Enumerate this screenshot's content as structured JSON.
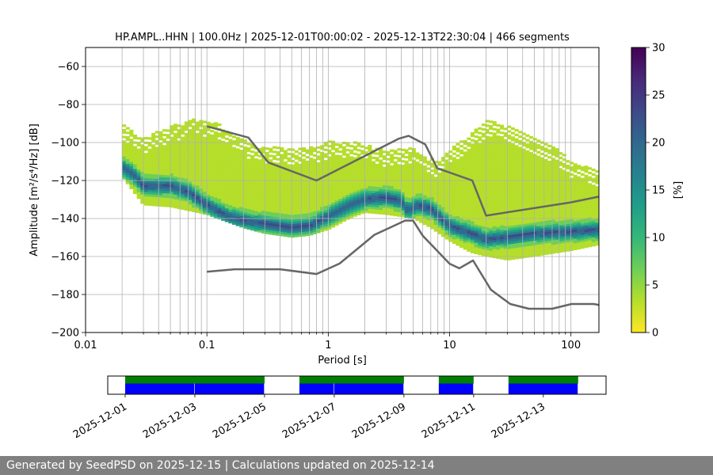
{
  "footer": {
    "text": "Generated by SeedPSD on 2025-12-15 | Calculations updated on 2025-12-14"
  },
  "chart_data": {
    "type": "heatmap",
    "title": "HP.AMPL..HHN | 100.0Hz | 2025-12-01T00:00:02 - 2025-12-13T22:30:04 | 466 segments",
    "xlabel": "Period [s]",
    "ylabel": "Amplitude [m²/s⁴/Hz] [dB]",
    "xscale": "log",
    "xlim": [
      0.01,
      170
    ],
    "ylim": [
      -200,
      -50
    ],
    "xticks": [
      {
        "value": 0.01,
        "label": "0.01"
      },
      {
        "value": 0.1,
        "label": "0.1"
      },
      {
        "value": 1,
        "label": "1"
      },
      {
        "value": 10,
        "label": "10"
      },
      {
        "value": 100,
        "label": "100"
      }
    ],
    "yticks": [
      {
        "value": -60,
        "label": "−60"
      },
      {
        "value": -80,
        "label": "−80"
      },
      {
        "value": -100,
        "label": "−100"
      },
      {
        "value": -120,
        "label": "−120"
      },
      {
        "value": -140,
        "label": "−140"
      },
      {
        "value": -160,
        "label": "−160"
      },
      {
        "value": -180,
        "label": "−180"
      },
      {
        "value": -200,
        "label": "−200"
      }
    ],
    "grid": true,
    "density": {
      "period_range": [
        0.02,
        170
      ],
      "mode_curve": [
        [
          0.02,
          -113
        ],
        [
          0.025,
          -117
        ],
        [
          0.03,
          -123
        ],
        [
          0.04,
          -123
        ],
        [
          0.05,
          -123
        ],
        [
          0.07,
          -126
        ],
        [
          0.1,
          -133
        ],
        [
          0.15,
          -139
        ],
        [
          0.2,
          -141
        ],
        [
          0.3,
          -143
        ],
        [
          0.5,
          -145
        ],
        [
          0.7,
          -144
        ],
        [
          1,
          -139
        ],
        [
          1.5,
          -133
        ],
        [
          2,
          -130
        ],
        [
          3,
          -129
        ],
        [
          4,
          -131
        ],
        [
          4.5,
          -136
        ],
        [
          5.5,
          -133
        ],
        [
          7,
          -135
        ],
        [
          10,
          -144
        ],
        [
          15,
          -148
        ],
        [
          20,
          -151
        ],
        [
          30,
          -150
        ],
        [
          50,
          -148
        ],
        [
          100,
          -147
        ],
        [
          170,
          -146
        ]
      ],
      "upper_curve": [
        [
          0.02,
          -90
        ],
        [
          0.03,
          -98
        ],
        [
          0.05,
          -92
        ],
        [
          0.08,
          -88
        ],
        [
          0.12,
          -90
        ],
        [
          0.2,
          -99
        ],
        [
          0.3,
          -103
        ],
        [
          0.5,
          -103
        ],
        [
          0.8,
          -103
        ],
        [
          1,
          -100
        ],
        [
          1.5,
          -100
        ],
        [
          2,
          -101
        ],
        [
          3,
          -105
        ],
        [
          5,
          -103
        ],
        [
          6,
          -108
        ],
        [
          8,
          -110
        ],
        [
          10,
          -104
        ],
        [
          15,
          -96
        ],
        [
          20,
          -89
        ],
        [
          25,
          -90
        ],
        [
          40,
          -95
        ],
        [
          70,
          -102
        ],
        [
          100,
          -110
        ],
        [
          170,
          -116
        ]
      ],
      "lower_curve": [
        [
          0.02,
          -118
        ],
        [
          0.03,
          -133
        ],
        [
          0.05,
          -134
        ],
        [
          0.1,
          -138
        ],
        [
          0.2,
          -145
        ],
        [
          0.3,
          -148
        ],
        [
          0.5,
          -150
        ],
        [
          0.7,
          -149
        ],
        [
          1,
          -146
        ],
        [
          1.5,
          -140
        ],
        [
          2,
          -137
        ],
        [
          3,
          -138
        ],
        [
          5,
          -140
        ],
        [
          7,
          -145
        ],
        [
          10,
          -152
        ],
        [
          15,
          -158
        ],
        [
          20,
          -160
        ],
        [
          30,
          -162
        ],
        [
          50,
          -160
        ],
        [
          100,
          -157
        ],
        [
          170,
          -154
        ]
      ]
    },
    "noise_models": [
      {
        "name": "high-noise-model",
        "points": [
          [
            0.1,
            -91.5
          ],
          [
            0.22,
            -97.4
          ],
          [
            0.32,
            -110.5
          ],
          [
            0.8,
            -120
          ],
          [
            3.8,
            -98
          ],
          [
            4.6,
            -96.5
          ],
          [
            6.3,
            -101
          ],
          [
            7.9,
            -113.5
          ],
          [
            15.4,
            -120
          ],
          [
            20,
            -138.5
          ],
          [
            100,
            -131.5
          ],
          [
            170,
            -128.5
          ]
        ]
      },
      {
        "name": "low-noise-model",
        "points": [
          [
            0.1,
            -168
          ],
          [
            0.17,
            -166.7
          ],
          [
            0.4,
            -166.7
          ],
          [
            0.8,
            -169.2
          ],
          [
            1.24,
            -163.7
          ],
          [
            2.4,
            -148.6
          ],
          [
            4.3,
            -141.1
          ],
          [
            5,
            -141.1
          ],
          [
            6,
            -149
          ],
          [
            10,
            -163.8
          ],
          [
            12,
            -166.2
          ],
          [
            15.6,
            -162.1
          ],
          [
            21.9,
            -177.5
          ],
          [
            31.6,
            -185
          ],
          [
            45,
            -187.5
          ],
          [
            70,
            -187.5
          ],
          [
            101,
            -185
          ],
          [
            154,
            -185
          ],
          [
            170,
            -185.5
          ]
        ]
      }
    ],
    "colorbar": {
      "label": "[%]",
      "range": [
        0,
        30
      ],
      "ticks": [
        {
          "value": 0,
          "label": "0"
        },
        {
          "value": 5,
          "label": "5"
        },
        {
          "value": 10,
          "label": "10"
        },
        {
          "value": 15,
          "label": "15"
        },
        {
          "value": 20,
          "label": "20"
        },
        {
          "value": 25,
          "label": "25"
        },
        {
          "value": 30,
          "label": "30"
        }
      ],
      "colors": [
        "#fde725",
        "#b5de2b",
        "#6ece58",
        "#35b779",
        "#1f9e89",
        "#26828e",
        "#31688e",
        "#3e4989",
        "#482878",
        "#440154"
      ]
    },
    "timeline": {
      "xlim": [
        "2025-12-01",
        "2025-12-14.3"
      ],
      "ticks": [
        "2025-12-01",
        "2025-12-03",
        "2025-12-05",
        "2025-12-07",
        "2025-12-09",
        "2025-12-11",
        "2025-12-13"
      ],
      "green_segments": [
        [
          1.0,
          5.0
        ],
        [
          6.0,
          9.0
        ],
        [
          10.0,
          11.0
        ],
        [
          12.0,
          14.0
        ]
      ],
      "blue_segments": [
        [
          1.0,
          3.0
        ],
        [
          3.0,
          5.0
        ],
        [
          6.0,
          7.0
        ],
        [
          7.0,
          9.0
        ],
        [
          10.0,
          11.0
        ],
        [
          12.0,
          14.0
        ]
      ],
      "green_color": "#008000",
      "blue_color": "#0000ff"
    }
  }
}
